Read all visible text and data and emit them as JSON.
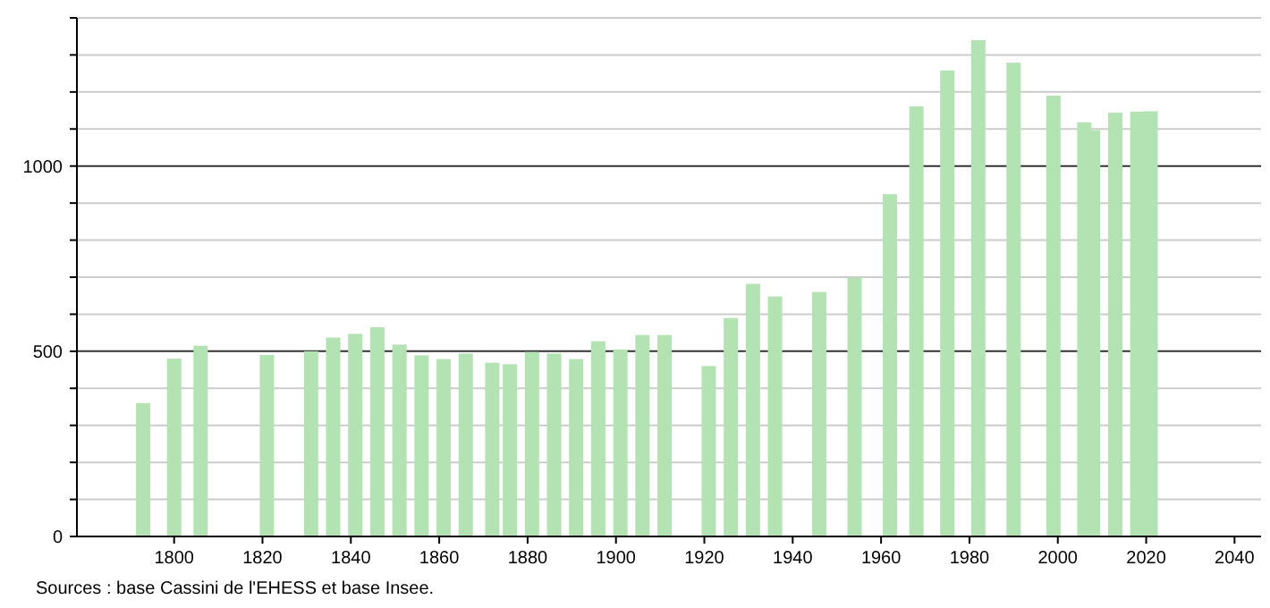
{
  "chart_data": {
    "type": "bar",
    "x": [
      1793,
      1800,
      1806,
      1821,
      1831,
      1836,
      1841,
      1846,
      1851,
      1856,
      1861,
      1866,
      1872,
      1876,
      1881,
      1886,
      1891,
      1896,
      1901,
      1906,
      1911,
      1921,
      1926,
      1931,
      1936,
      1946,
      1954,
      1962,
      1968,
      1975,
      1982,
      1990,
      1999,
      2006,
      2008,
      2013,
      2018,
      2021
    ],
    "values": [
      360,
      480,
      515,
      490,
      500,
      537,
      547,
      565,
      518,
      489,
      479,
      494,
      469,
      465,
      498,
      494,
      479,
      527,
      505,
      544,
      544,
      460,
      590,
      682,
      648,
      660,
      698,
      924,
      1161,
      1258,
      1340,
      1279,
      1190,
      1118,
      1097,
      1144,
      1147,
      1148
    ],
    "color": "#b3e3b3",
    "xlim": [
      1778,
      2046
    ],
    "xticks": [
      1800,
      1820,
      1840,
      1860,
      1880,
      1900,
      1920,
      1940,
      1960,
      1980,
      2000,
      2020,
      2040
    ],
    "ylim": [
      0,
      1400
    ],
    "yticks": [
      0,
      {
        "value": 100,
        "label": null
      },
      {
        "value": 200,
        "label": null
      },
      {
        "value": 300,
        "label": null
      },
      {
        "value": 400,
        "label": null
      },
      500,
      {
        "value": 600,
        "label": null
      },
      {
        "value": 700,
        "label": null
      },
      {
        "value": 800,
        "label": null
      },
      {
        "value": 900,
        "label": null
      },
      1000,
      {
        "value": 1100,
        "label": null
      },
      {
        "value": 1200,
        "label": null
      },
      {
        "value": 1300,
        "label": null
      },
      {
        "value": 1400,
        "label": null
      }
    ],
    "grid": true,
    "annotations": [
      "Sources : base Cassini de l'EHESS et base Insee."
    ]
  }
}
